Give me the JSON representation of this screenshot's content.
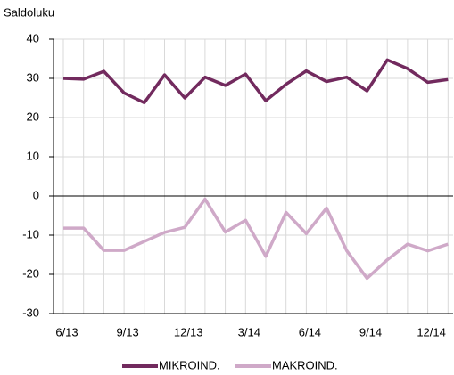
{
  "chart_data": {
    "type": "line",
    "y_axis_label": "Saldoluku",
    "categories": [
      "6/13",
      null,
      null,
      "9/13",
      null,
      null,
      "12/13",
      null,
      null,
      "3/14",
      null,
      null,
      "6/14",
      null,
      null,
      "9/14",
      null,
      null,
      "12/14",
      null
    ],
    "series": [
      {
        "name": "MIKROIND.",
        "color": "#722a5e",
        "values": [
          30,
          29.8,
          31.8,
          26.3,
          23.8,
          30.9,
          25,
          30.3,
          28.2,
          31.1,
          24.3,
          28.5,
          31.9,
          29.2,
          30.3,
          26.8,
          34.7,
          32.5,
          29,
          29.7
        ]
      },
      {
        "name": "MAKROIND.",
        "color": "#cfa9c8",
        "values": [
          -8.2,
          -8.2,
          -13.9,
          -13.9,
          -11.6,
          -9.3,
          -8,
          -0.8,
          -9.2,
          -6.2,
          -15.4,
          -4.2,
          -9.6,
          -3.1,
          -14,
          -21,
          -16.3,
          -12.3,
          -14,
          -12.3
        ]
      }
    ],
    "ylim": [
      -30,
      40
    ],
    "yticks": [
      -30,
      -20,
      -10,
      0,
      10,
      20,
      30,
      40
    ],
    "grid": true,
    "legend": "bottom"
  }
}
